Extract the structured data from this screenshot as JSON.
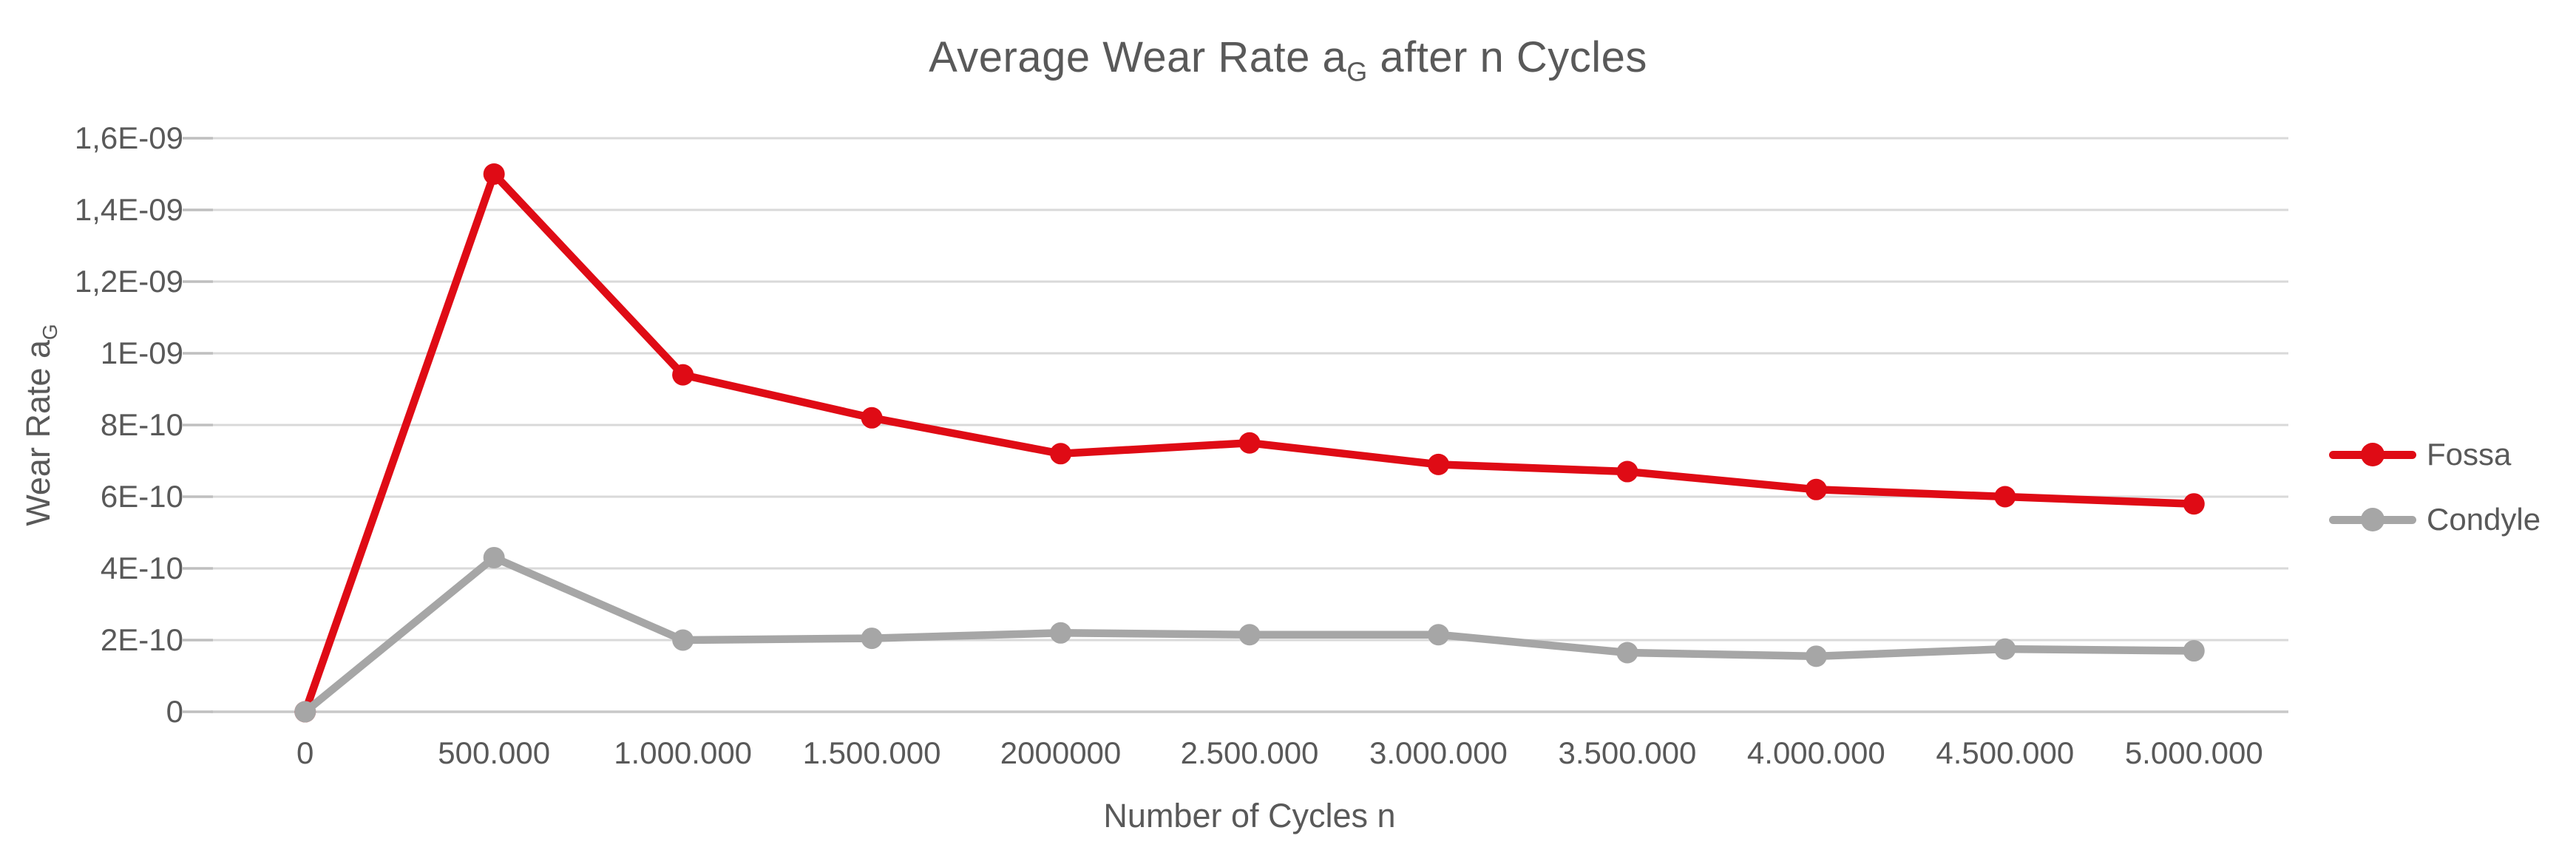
{
  "chart_data": {
    "type": "line",
    "title": {
      "prefix": "Average Wear Rate a",
      "subscript": "G",
      "suffix": " after n Cycles"
    },
    "x_axis": {
      "title": "Number of Cycles n",
      "categories": [
        "0",
        "500.000",
        "1.000.000",
        "1.500.000",
        "2000000",
        "2.500.000",
        "3.000.000",
        "3.500.000",
        "4.000.000",
        "4.500.000",
        "5.000.000"
      ]
    },
    "y_axis": {
      "title_prefix": "Wear Rate a",
      "title_subscript": "G",
      "min": 0,
      "max": 1.6e-09,
      "tick_step": 2e-10,
      "tick_labels": [
        "0",
        "2E-10",
        "4E-10",
        "6E-10",
        "8E-10",
        "1E-09",
        "1,2E-09",
        "1,4E-09",
        "1,6E-09"
      ]
    },
    "series": [
      {
        "name": "Fossa",
        "color": "#DF0B15",
        "values": [
          0,
          1.5e-09,
          9.4e-10,
          8.2e-10,
          7.2e-10,
          7.5e-10,
          6.9e-10,
          6.7e-10,
          6.2e-10,
          6e-10,
          5.8e-10
        ]
      },
      {
        "name": "Condyle",
        "color": "#A6A6A6",
        "values": [
          0,
          4.3e-10,
          2e-10,
          2.05e-10,
          2.2e-10,
          2.15e-10,
          2.15e-10,
          1.65e-10,
          1.55e-10,
          1.75e-10,
          1.7e-10
        ]
      }
    ],
    "legend_position": "right",
    "grid": true,
    "colors": {
      "gridline": "#D9D9D9",
      "axis_line": "#C8C8C8",
      "tick_mark": "#BFBFBF",
      "text": "#595959",
      "background": "#FFFFFF"
    }
  }
}
